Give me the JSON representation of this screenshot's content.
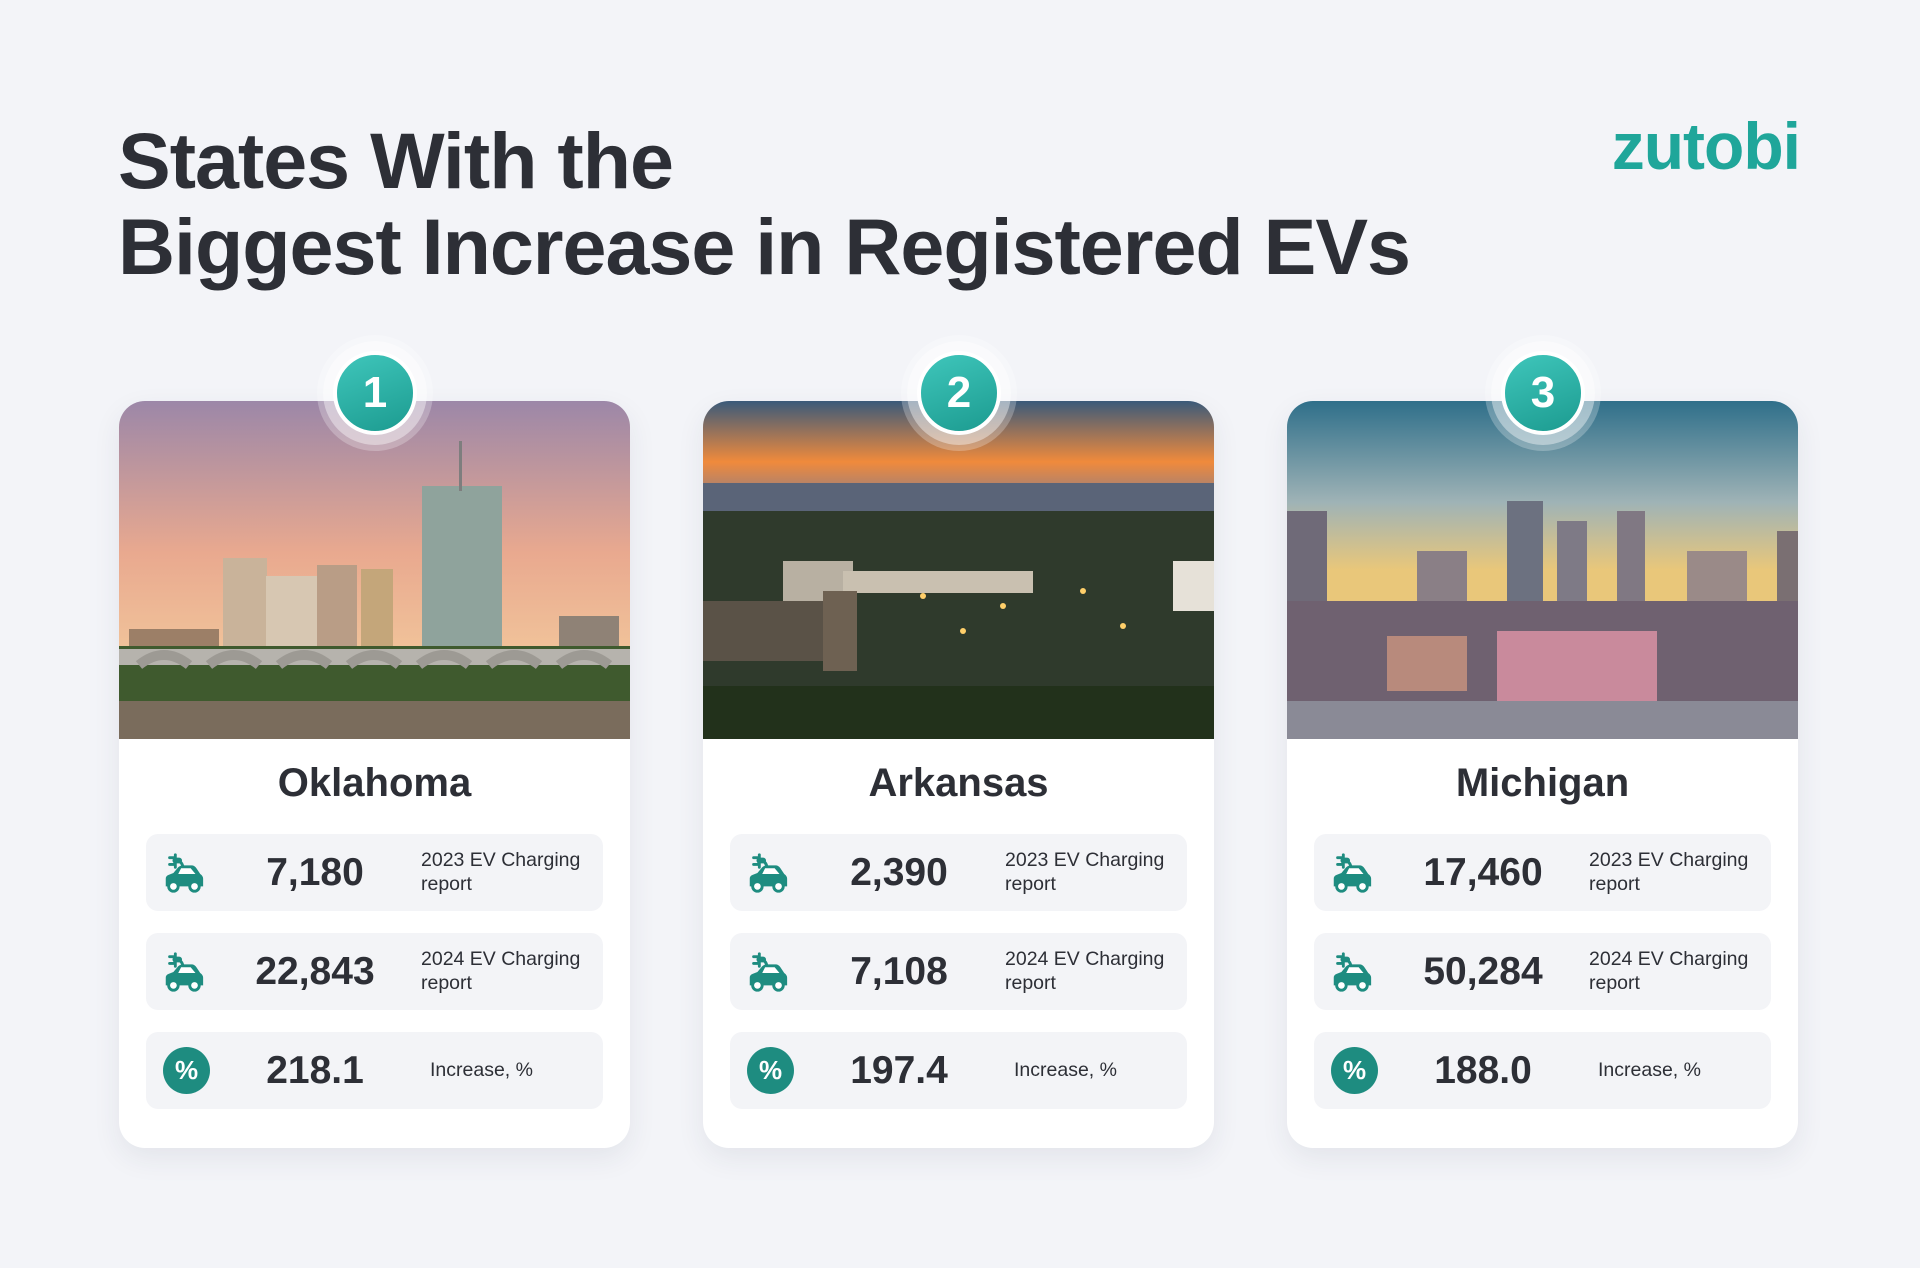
{
  "header": {
    "title_line1": "States With the",
    "title_line2": "Biggest Increase in Registered EVs",
    "logo": "zutobi"
  },
  "colors": {
    "accent": "#1fa69a",
    "badge": "#2bb3a8",
    "pct_circle": "#1e8c80",
    "text": "#2d2f36"
  },
  "icons": {
    "ev": "ev-charging-car-icon",
    "percent": "percent-icon"
  },
  "cards": [
    {
      "rank": "1",
      "state": "Oklahoma",
      "photo": "tulsa-skyline-bridge",
      "stats": [
        {
          "value": "7,180",
          "label": "2023 EV Charging report"
        },
        {
          "value": "22,843",
          "label": "2024 EV Charging report"
        },
        {
          "value": "218.1",
          "label": "Increase, %"
        }
      ]
    },
    {
      "rank": "2",
      "state": "Arkansas",
      "photo": "little-rock-sunset",
      "stats": [
        {
          "value": "2,390",
          "label": "2023 EV Charging report"
        },
        {
          "value": "7,108",
          "label": "2024 EV Charging report"
        },
        {
          "value": "197.4",
          "label": "Increase, %"
        }
      ]
    },
    {
      "rank": "3",
      "state": "Michigan",
      "photo": "detroit-skyline",
      "stats": [
        {
          "value": "17,460",
          "label": "2023 EV Charging report"
        },
        {
          "value": "50,284",
          "label": "2024 EV Charging report"
        },
        {
          "value": "188.0",
          "label": "Increase, %"
        }
      ]
    }
  ]
}
